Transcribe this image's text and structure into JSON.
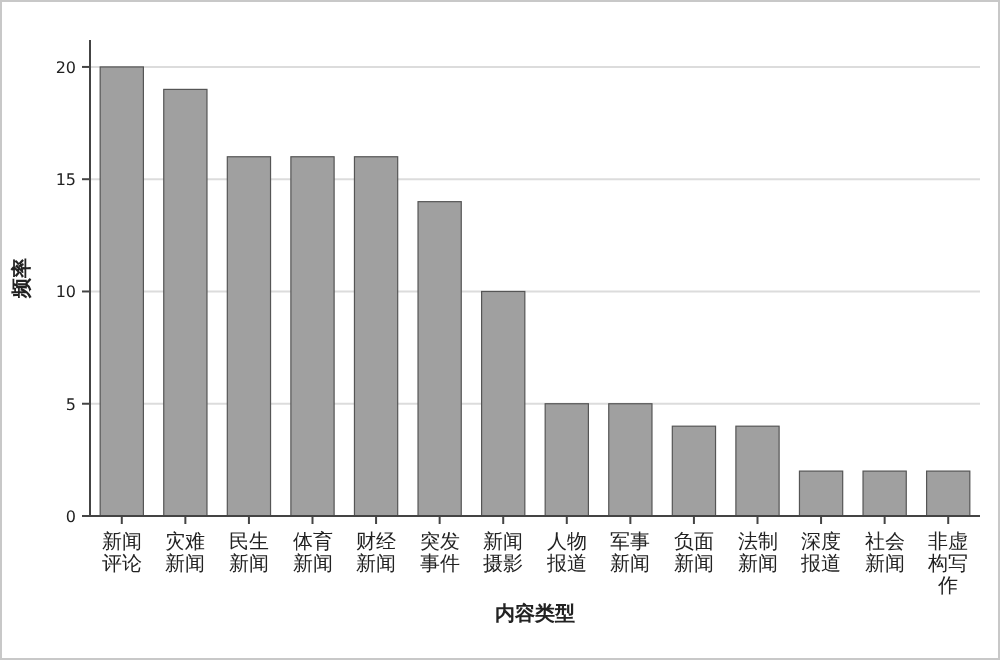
{
  "chart_data": {
    "type": "bar",
    "xlabel": "内容类型",
    "ylabel": "频率",
    "categories": [
      "新闻评论",
      "灾难新闻",
      "民生新闻",
      "体育新闻",
      "财经新闻",
      "突发事件",
      "新闻摄影",
      "人物报道",
      "军事新闻",
      "负面新闻",
      "法制新闻",
      "深度报道",
      "社会新闻",
      "非虚构写作"
    ],
    "values": [
      20,
      19,
      16,
      16,
      16,
      14,
      10,
      5,
      5,
      4,
      4,
      2,
      2,
      2
    ],
    "color": "#a0a0a0",
    "ylim": [
      0,
      21.2
    ],
    "yticks": [
      0,
      5,
      10,
      15,
      20
    ],
    "grid": "y"
  }
}
